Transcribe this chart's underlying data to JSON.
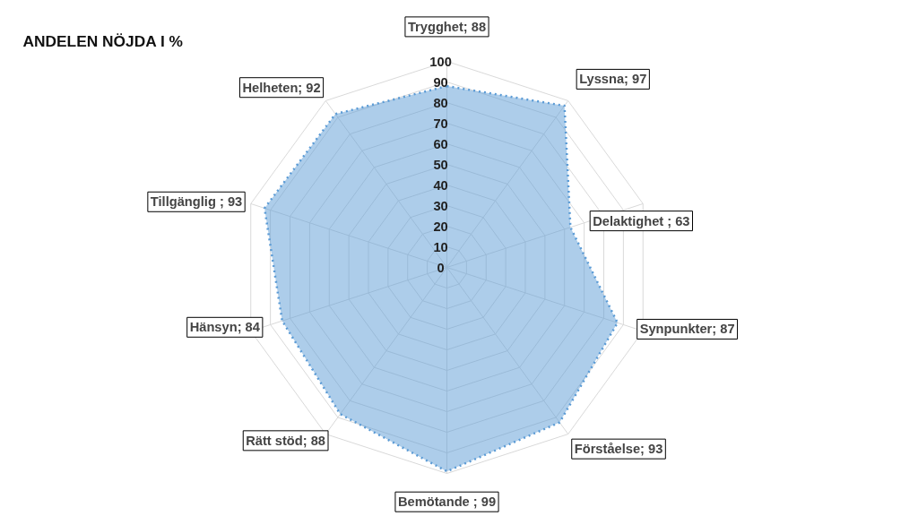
{
  "chart_data": {
    "type": "radar",
    "title": "ANDELEN NÖJDA I %",
    "categories": [
      "Trygghet; 88",
      "Lyssna; 97",
      "Delaktighet ; 63",
      "Synpunkter; 87",
      "Förståelse; 93",
      "Bemötande ; 99",
      "Rätt stöd; 88",
      "Hänsyn; 84",
      "Tillgänglig ; 93",
      "Helheten; 92"
    ],
    "series": [
      {
        "color": "#5b9bd5",
        "values": [
          88,
          97,
          63,
          87,
          93,
          99,
          88,
          84,
          93,
          92
        ]
      }
    ],
    "ylim": [
      0,
      100
    ],
    "yticks": [
      0,
      10,
      20,
      30,
      40,
      50,
      60,
      70,
      80,
      90,
      100
    ],
    "grid": true,
    "line_style": "dotted",
    "marker": "none"
  }
}
